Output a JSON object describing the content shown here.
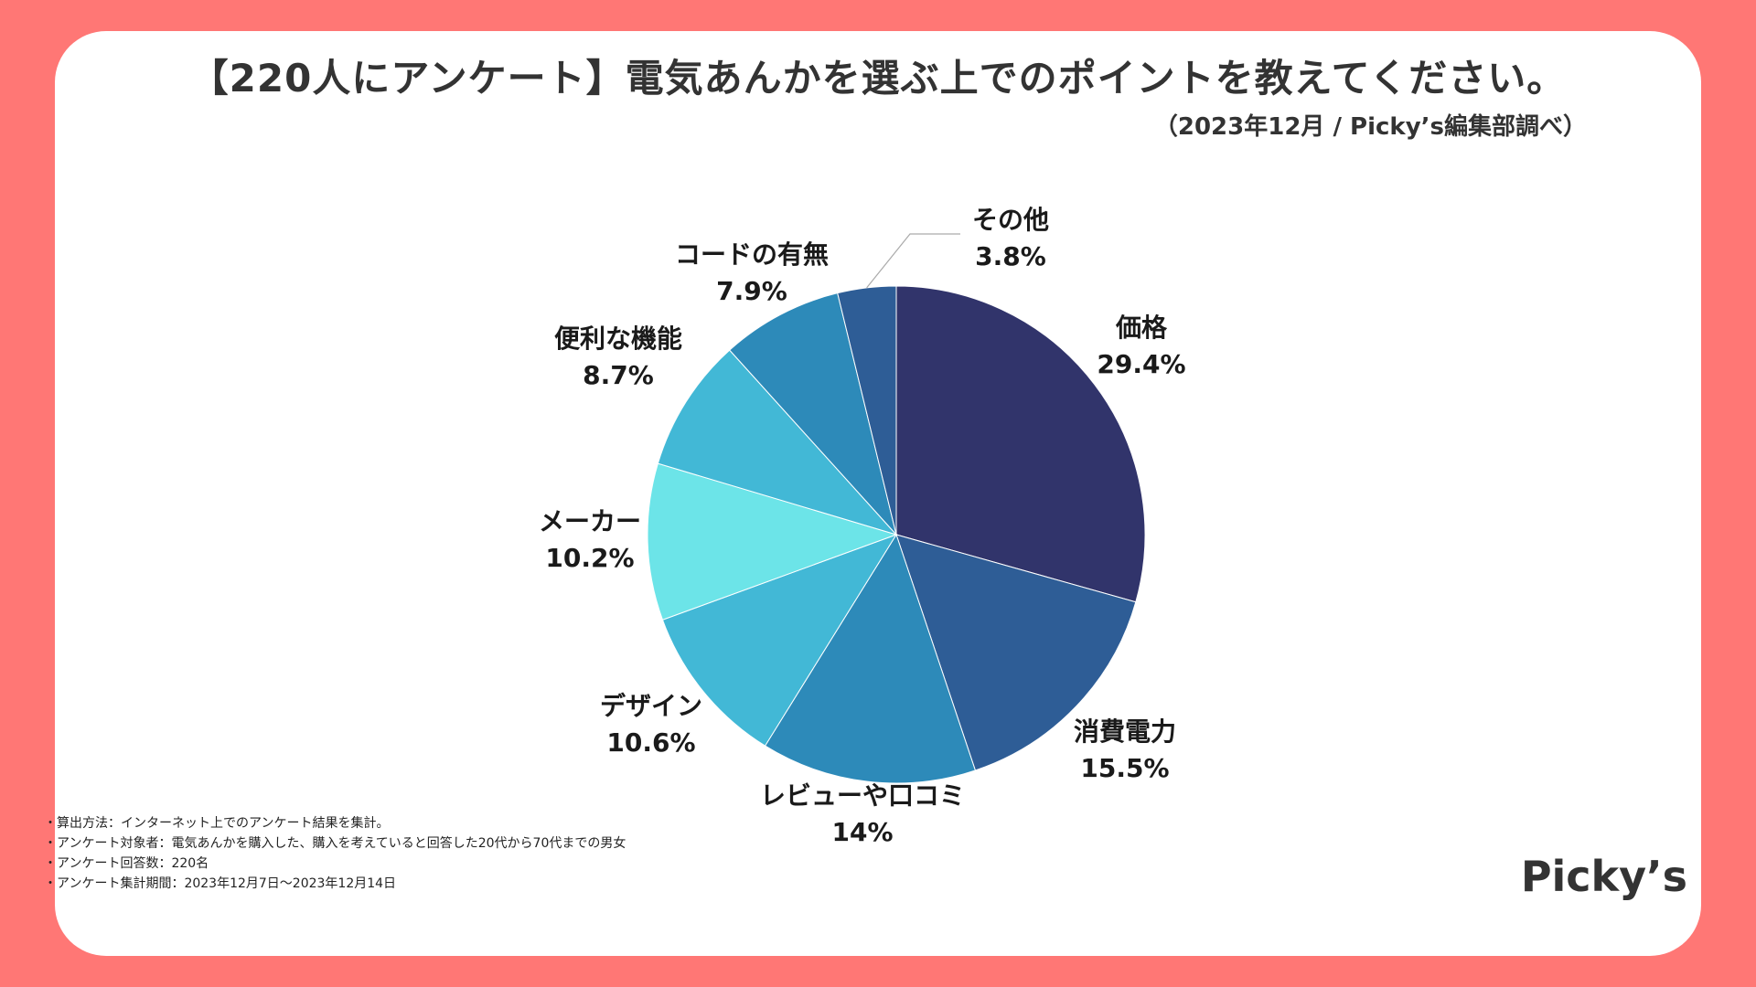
{
  "title": "【220人にアンケート】電気あんかを選ぶ上でのポイントを教えてください。",
  "subtitle": "（2023年12月 / Picky’s編集部調べ）",
  "chart_data": {
    "type": "pie",
    "start": "top, clockwise",
    "slices": [
      {
        "label": "価格",
        "value_text": "29.4%",
        "value": 29.4,
        "color": "#31346b"
      },
      {
        "label": "消費電力",
        "value_text": "15.5%",
        "value": 15.5,
        "color": "#2e5d96"
      },
      {
        "label": "レビューや口コミ",
        "value_text": "14%",
        "value": 14,
        "color": "#2d8ab9"
      },
      {
        "label": "デザイン",
        "value_text": "10.6%",
        "value": 10.6,
        "color": "#42b8d6"
      },
      {
        "label": "メーカー",
        "value_text": "10.2%",
        "value": 10.2,
        "color": "#6ce4e8"
      },
      {
        "label": "便利な機能",
        "value_text": "8.7%",
        "value": 8.7,
        "color": "#42b8d6"
      },
      {
        "label": "コードの有無",
        "value_text": "7.9%",
        "value": 7.9,
        "color": "#2d8ab9"
      },
      {
        "label": "その他",
        "value_text": "3.8%",
        "value": 3.8,
        "color": "#2e5d96"
      }
    ]
  },
  "notes": [
    "・算出方法：インターネット上でのアンケート結果を集計。",
    "・アンケート対象者：電気あんかを購入した、購入を考えていると回答した20代から70代までの男女",
    "・アンケート回答数：220名",
    "・アンケート集計期間：2023年12月7日〜2023年12月14日"
  ],
  "logo": "Picky’s"
}
